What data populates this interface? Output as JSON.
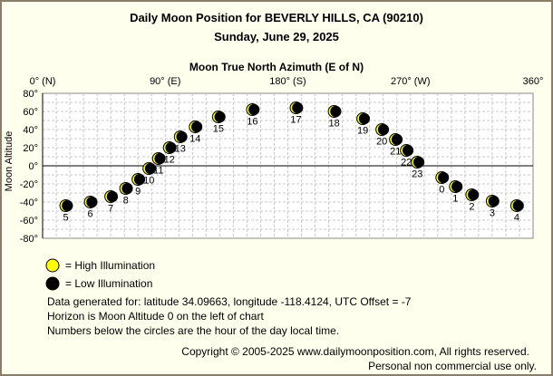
{
  "header": {
    "title": "Daily Moon Position for BEVERLY HILLS, CA (90210)",
    "date": "Sunday, June 29, 2025"
  },
  "chart_data": {
    "type": "scatter",
    "title": "Moon True North Azimuth (E of N)",
    "xlabel": "Moon True North Azimuth (E of N)",
    "ylabel": "Moon Altitude",
    "xlim": [
      0,
      360
    ],
    "ylim": [
      -80,
      80
    ],
    "x_ticks": [
      {
        "value": 0,
        "label": "0° (N)"
      },
      {
        "value": 90,
        "label": "90° (E)"
      },
      {
        "value": 180,
        "label": "180° (S)"
      },
      {
        "value": 270,
        "label": "270° (W)"
      },
      {
        "value": 360,
        "label": "360°"
      }
    ],
    "y_ticks": [
      {
        "value": 80,
        "label": "80°"
      },
      {
        "value": 60,
        "label": "60°"
      },
      {
        "value": 40,
        "label": "40°"
      },
      {
        "value": 20,
        "label": "20°"
      },
      {
        "value": 0,
        "label": "0°"
      },
      {
        "value": -20,
        "label": "-20°"
      },
      {
        "value": -40,
        "label": "-40°"
      },
      {
        "value": -60,
        "label": "-60°"
      },
      {
        "value": -80,
        "label": "-80°"
      }
    ],
    "grid": true,
    "points": [
      {
        "hour": "0",
        "az": 293,
        "alt": -13
      },
      {
        "hour": "1",
        "az": 303,
        "alt": -23
      },
      {
        "hour": "2",
        "az": 315,
        "alt": -32
      },
      {
        "hour": "3",
        "az": 330,
        "alt": -39
      },
      {
        "hour": "4",
        "az": 348,
        "alt": -44
      },
      {
        "hour": "5",
        "az": 17,
        "alt": -44
      },
      {
        "hour": "6",
        "az": 35,
        "alt": -40
      },
      {
        "hour": "7",
        "az": 50,
        "alt": -34
      },
      {
        "hour": "8",
        "az": 61,
        "alt": -25
      },
      {
        "hour": "9",
        "az": 70,
        "alt": -15
      },
      {
        "hour": "10",
        "az": 78,
        "alt": -3
      },
      {
        "hour": "11",
        "az": 85,
        "alt": 8
      },
      {
        "hour": "12",
        "az": 93,
        "alt": 20
      },
      {
        "hour": "13",
        "az": 101,
        "alt": 32
      },
      {
        "hour": "14",
        "az": 112,
        "alt": 43
      },
      {
        "hour": "15",
        "az": 129,
        "alt": 54
      },
      {
        "hour": "16",
        "az": 154,
        "alt": 62
      },
      {
        "hour": "17",
        "az": 186,
        "alt": 64
      },
      {
        "hour": "18",
        "az": 214,
        "alt": 60
      },
      {
        "hour": "19",
        "az": 235,
        "alt": 52
      },
      {
        "hour": "20",
        "az": 249,
        "alt": 40
      },
      {
        "hour": "21",
        "az": 259,
        "alt": 29
      },
      {
        "hour": "22",
        "az": 267,
        "alt": 17
      },
      {
        "hour": "23",
        "az": 275,
        "alt": 4
      }
    ],
    "legend": [
      {
        "label": "= High Illumination",
        "color": "#ffff00"
      },
      {
        "label": "= Low Illumination",
        "color": "#000000"
      }
    ],
    "legend_placement": "bottom-left"
  },
  "notes": {
    "line1": "Data generated for: latitude 34.09663, longitude -118.4124, UTC Offset = -7",
    "line2": "Horizon is Moon Altitude 0 on the left of chart",
    "line3": "Numbers below the circles are the hour of the day local time."
  },
  "footer": {
    "copyright": "Copyright © 2005-2025 www.dailymoonposition.com, All rights reserved.",
    "personal": "Personal non commercial use only."
  }
}
